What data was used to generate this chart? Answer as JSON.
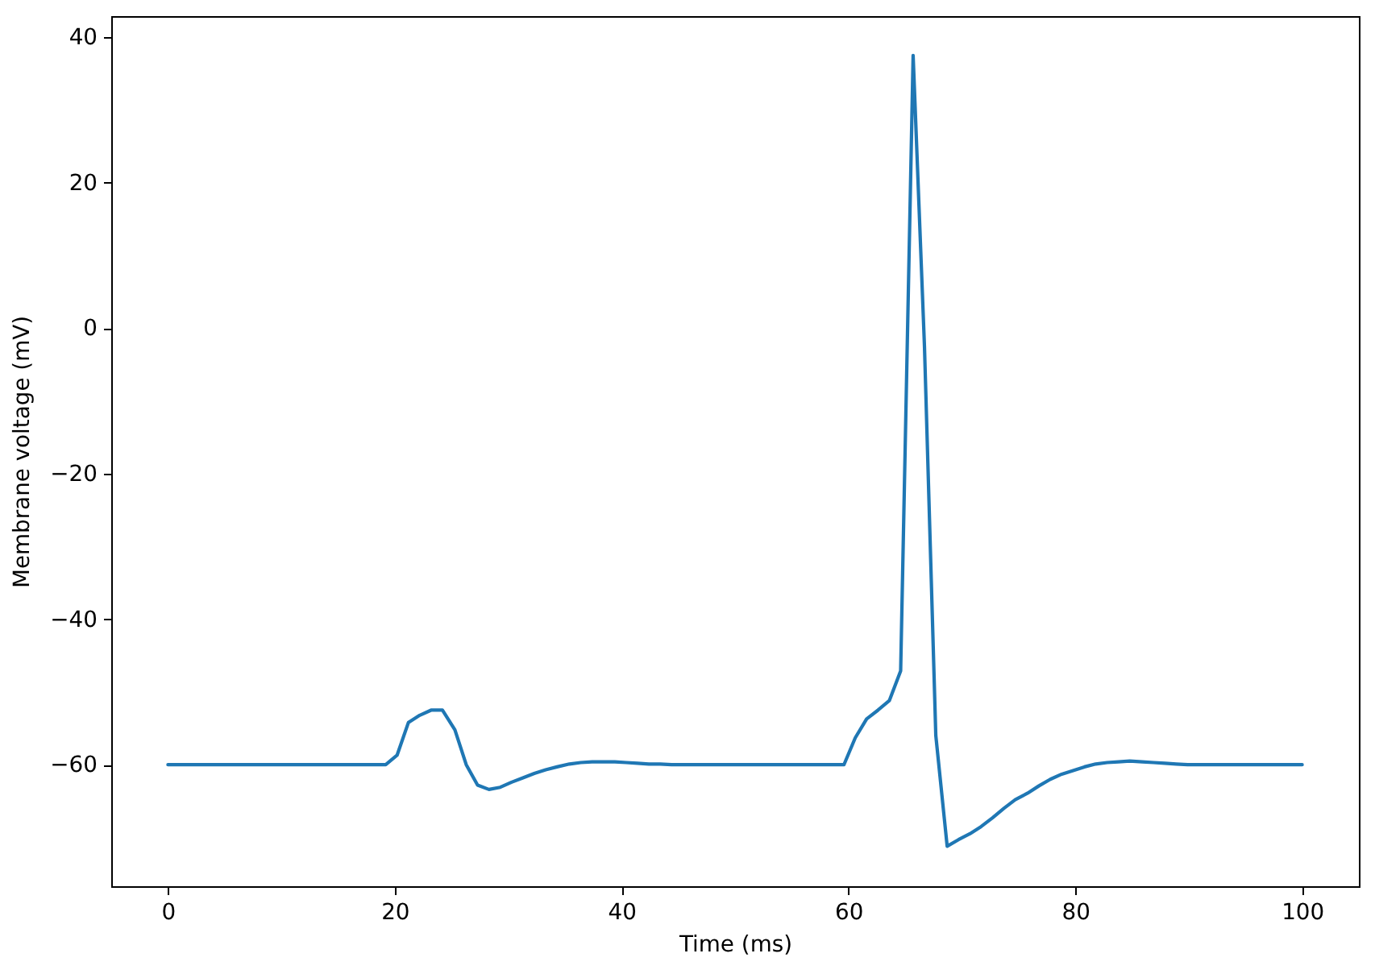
{
  "chart_data": {
    "type": "line",
    "xlabel": "Time (ms)",
    "ylabel": "Membrane voltage (mV)",
    "x": [
      0,
      1.0,
      2.0,
      3.0,
      4.0,
      5.1,
      6.1,
      7.1,
      8.1,
      9.1,
      10.1,
      11.1,
      12.1,
      13.1,
      14.1,
      15.2,
      16.2,
      17.2,
      18.2,
      19.2,
      20.2,
      21.2,
      22.2,
      23.2,
      24.2,
      25.3,
      26.3,
      27.3,
      28.3,
      29.3,
      30.3,
      31.3,
      32.3,
      33.3,
      34.3,
      35.4,
      36.4,
      37.4,
      38.4,
      39.4,
      40.4,
      41.4,
      42.4,
      43.4,
      44.4,
      45.5,
      46.5,
      47.5,
      48.5,
      49.5,
      50.5,
      51.5,
      52.5,
      53.5,
      54.5,
      55.6,
      56.6,
      57.6,
      58.6,
      59.6,
      60.6,
      61.6,
      62.6,
      63.6,
      64.6,
      65.7,
      66.7,
      67.7,
      68.7,
      69.7,
      70.7,
      71.7,
      72.7,
      73.7,
      74.7,
      75.8,
      76.8,
      77.8,
      78.8,
      79.8,
      80.8,
      81.8,
      82.8,
      83.8,
      84.8,
      85.9,
      86.9,
      87.9,
      88.9,
      89.9,
      90.9,
      91.9,
      92.9,
      93.9,
      94.9,
      96.0,
      97.0,
      98.0,
      99.0,
      100
    ],
    "values": [
      -60,
      -60,
      -60,
      -60,
      -60,
      -60,
      -60,
      -60,
      -60,
      -60,
      -60,
      -60,
      -60,
      -60,
      -60,
      -60,
      -60,
      -60,
      -60,
      -60,
      -58.7,
      -54.2,
      -53.2,
      -52.5,
      -52.5,
      -55.2,
      -60.0,
      -62.8,
      -63.4,
      -63.1,
      -62.4,
      -61.8,
      -61.2,
      -60.7,
      -60.3,
      -59.9,
      -59.7,
      -59.6,
      -59.6,
      -59.6,
      -59.7,
      -59.8,
      -59.9,
      -59.9,
      -60,
      -60,
      -60,
      -60,
      -60,
      -60,
      -60,
      -60,
      -60,
      -60,
      -60,
      -60,
      -60,
      -60,
      -60,
      -60,
      -56.3,
      -53.7,
      -52.5,
      -51.2,
      -47.1,
      37.5,
      -2.5,
      -56.0,
      -71.2,
      -70.3,
      -69.5,
      -68.5,
      -67.3,
      -66.0,
      -64.8,
      -63.9,
      -62.9,
      -62.0,
      -61.3,
      -60.8,
      -60.3,
      -59.9,
      -59.7,
      -59.6,
      -59.5,
      -59.6,
      -59.7,
      -59.8,
      -59.9,
      -60,
      -60,
      -60,
      -60,
      -60,
      -60,
      -60,
      -60,
      -60,
      -60,
      -60
    ],
    "color": "#1f77b4",
    "xlim": [
      -5,
      105
    ],
    "ylim": [
      -76.7,
      42.9
    ],
    "xticks": [
      0,
      20,
      40,
      60,
      80,
      100
    ],
    "yticks": [
      {
        "value": -60,
        "label": "−60"
      },
      {
        "value": -40,
        "label": "−40"
      },
      {
        "value": -20,
        "label": "−20"
      },
      0,
      20,
      40
    ]
  }
}
